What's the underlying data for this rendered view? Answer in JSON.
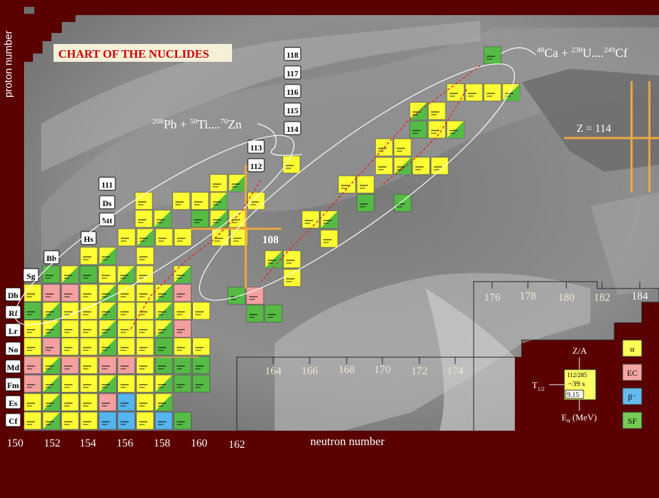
{
  "title": "CHART OF THE NUCLIDES",
  "axis_y_label": "proton  number",
  "axis_x_label": "neutron  number",
  "reaction_hot": {
    "pre": "48",
    "el1": "Ca + ",
    "mid": "238",
    "el2": "U....",
    "mid2": "249",
    "el3": "Cf"
  },
  "reaction_cold": {
    "pre": "208",
    "el1": "Pb + ",
    "mid": "50",
    "el2": "Ti....",
    "mid2": "70",
    "el3": "Zn"
  },
  "shell_z": "Z = 114",
  "shell_n": "108",
  "elements": [
    "Cf",
    "Es",
    "Fm",
    "Md",
    "No",
    "Lr",
    "Rf",
    "Db",
    "Sg",
    "Bh",
    "Hs",
    "Mt",
    "Ds",
    "111",
    "112",
    "113",
    "114",
    "115",
    "116",
    "117",
    "118"
  ],
  "n_ticks_bottom": [
    "150",
    "152",
    "154",
    "156",
    "158",
    "160",
    "162"
  ],
  "n_ticks_mid": [
    "164",
    "166",
    "168",
    "170",
    "172",
    "174"
  ],
  "n_ticks_right": [
    "176",
    "178",
    "180",
    "182",
    "184"
  ],
  "legend": {
    "zlabel": "Z/A",
    "nuclide": "112/285",
    "halflife": "~39 s",
    "energy": "9.15",
    "t_label": "T",
    "t_sub": "1/2",
    "e_label": "E",
    "e_sub": "α",
    "e_unit": " (MeV)",
    "decays": [
      {
        "label": "α",
        "color": "#ffff55"
      },
      {
        "label": "EC",
        "color": "#f4a6a6"
      },
      {
        "label": "β⁻",
        "color": "#66bbee"
      },
      {
        "label": "SF",
        "color": "#77cc55"
      }
    ]
  },
  "colors": {
    "alpha": "#ffff33",
    "ec": "#f4a0a0",
    "beta": "#55b5ee",
    "sf": "#55bb44",
    "frame": "#6a0000"
  }
}
